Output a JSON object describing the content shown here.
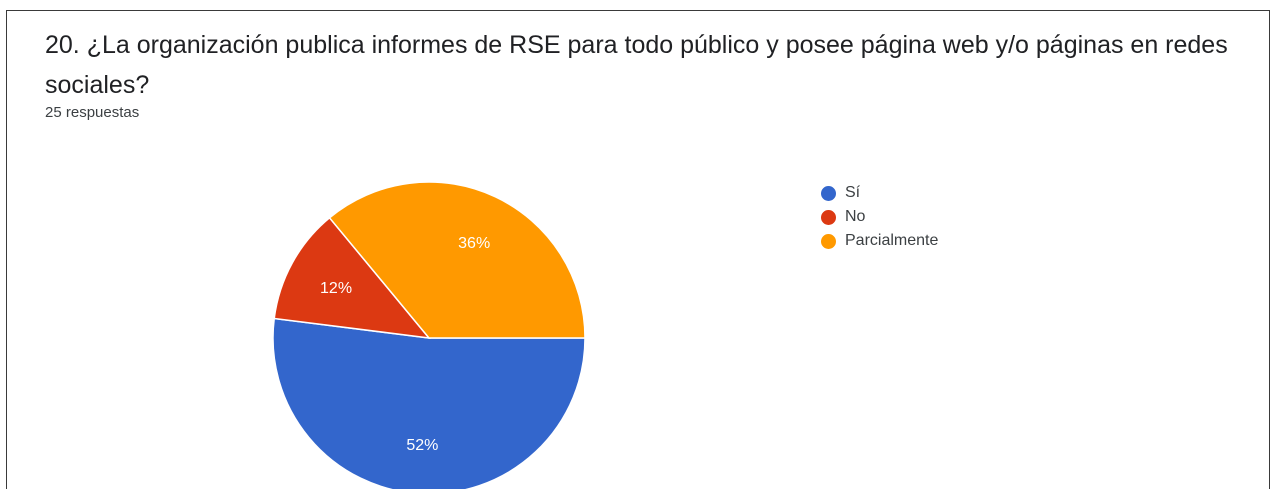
{
  "question": {
    "title": "20. ¿La organización publica informes de RSE para todo público y posee página web y/o páginas en redes sociales?",
    "responses": "25 respuestas"
  },
  "chart_data": {
    "type": "pie",
    "slices": [
      {
        "label": "Sí",
        "value": 52,
        "display": "52%",
        "color": "#3366cc"
      },
      {
        "label": "No",
        "value": 12,
        "display": "12%",
        "color": "#dc3912"
      },
      {
        "label": "Parcialmente",
        "value": 36,
        "display": "36%",
        "color": "#ff9900"
      }
    ],
    "legend_position": "right"
  }
}
